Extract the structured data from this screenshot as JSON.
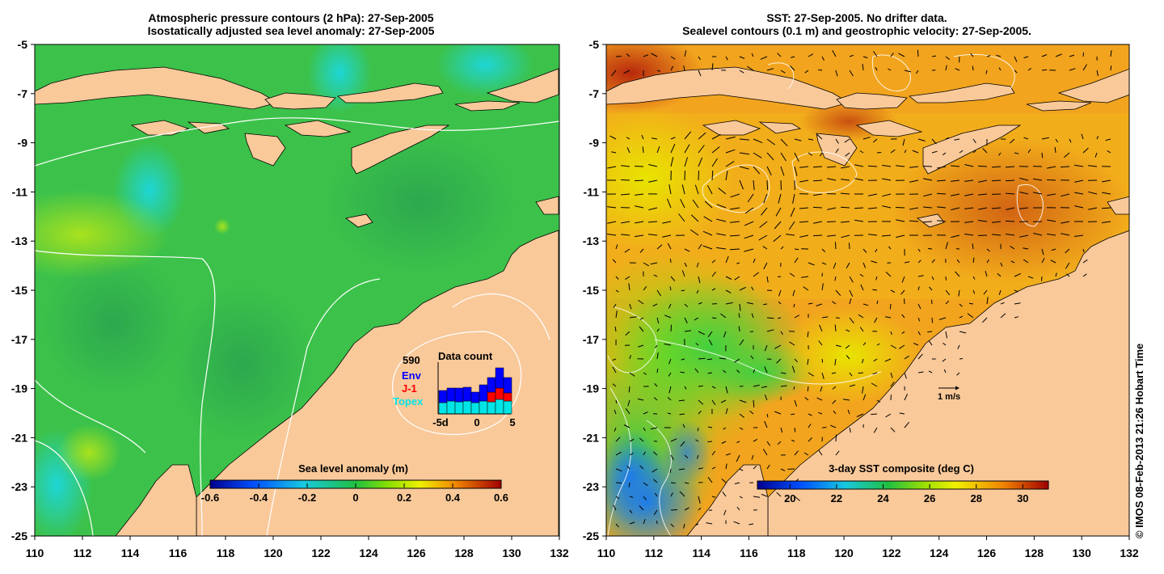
{
  "left_panel": {
    "title_line1": "Atmospheric pressure contours (2 hPa): 27-Sep-2005",
    "title_line2": "Isostatically adjusted sea level anomaly: 27-Sep-2005",
    "colorbar_label": "Sea level anomaly (m)",
    "colorbar_ticks": [
      "-0.6",
      "-0.4",
      "-0.2",
      "0",
      "0.2",
      "0.4",
      "0.6"
    ],
    "colorbar_range": [
      -0.6,
      0.6
    ],
    "data_count": {
      "title": "Data count",
      "total": "590",
      "legend": [
        {
          "label": "Env",
          "color": "#0000ff"
        },
        {
          "label": "J-1",
          "color": "#ff0000"
        },
        {
          "label": "Topex",
          "color": "#00e5e5"
        }
      ],
      "x_ticks": [
        "-5d",
        "0",
        "5"
      ]
    }
  },
  "right_panel": {
    "title_line1": "SST: 27-Sep-2005. No drifter data.",
    "title_line2": "Sealevel contours (0.1 m) and geostrophic velocity: 27-Sep-2005.",
    "colorbar_label": "3-day SST composite (deg C)",
    "colorbar_ticks": [
      "20",
      "22",
      "24",
      "26",
      "28",
      "30"
    ],
    "colorbar_range": [
      18.6,
      31.1
    ],
    "velocity_scale_label": "1 m/s"
  },
  "axes": {
    "lon_ticks": [
      "110",
      "112",
      "114",
      "116",
      "118",
      "120",
      "122",
      "124",
      "126",
      "128",
      "130",
      "132"
    ],
    "lat_ticks": [
      "-5",
      "-7",
      "-9",
      "-11",
      "-13",
      "-15",
      "-17",
      "-19",
      "-21",
      "-23",
      "-25"
    ],
    "lon_range": [
      110,
      132
    ],
    "lat_range": [
      -25,
      -5
    ]
  },
  "credit": "© IMOS 08-Feb-2013 21:26 Hobart Time",
  "colors": {
    "land": "#f9c99a",
    "ocean_left": "#3cc24a",
    "ocean_right": "#f2a41e"
  }
}
